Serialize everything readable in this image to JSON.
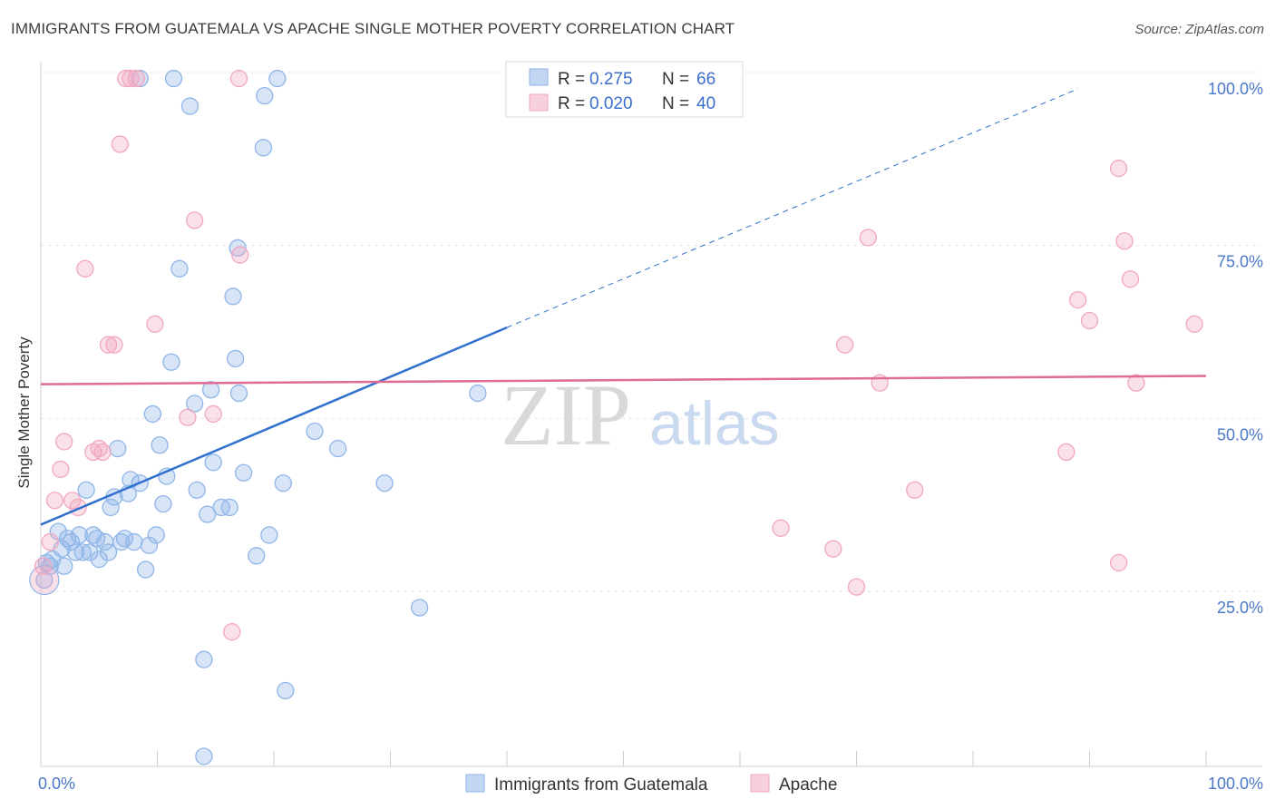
{
  "title": "IMMIGRANTS FROM GUATEMALA VS APACHE SINGLE MOTHER POVERTY CORRELATION CHART",
  "source": "Source: ZipAtlas.com",
  "watermark": {
    "zip": "ZIP",
    "atlas": "atlas"
  },
  "chart_data": {
    "type": "scatter",
    "ylabel": "Single Mother Poverty",
    "xlim": [
      0,
      100
    ],
    "ylim": [
      0,
      103
    ],
    "x_tick_labels": [
      {
        "value": 0,
        "label": "0.0%"
      },
      {
        "value": 100,
        "label": "100.0%"
      }
    ],
    "y_tick_labels": [
      {
        "value": 25,
        "label": "25.0%"
      },
      {
        "value": 50,
        "label": "50.0%"
      },
      {
        "value": 75,
        "label": "75.0%"
      },
      {
        "value": 100,
        "label": "100.0%"
      }
    ],
    "grid": true,
    "legend": {
      "placement": "top-center",
      "entries": [
        {
          "r_label": "R =",
          "r_value": "0.275",
          "n_label": "N =",
          "n_value": "66",
          "color": "#8fb5e8"
        },
        {
          "r_label": "R =",
          "r_value": "0.020",
          "n_label": "N =",
          "n_value": "40",
          "color": "#f2a7bf"
        }
      ]
    },
    "series": [
      {
        "name": "Immigrants from Guatemala",
        "color": "#8fb5e8",
        "line_color": "#2f6fce",
        "trend": {
          "x0": 0,
          "y0": 37.0,
          "x1": 40,
          "y1": 65.5,
          "dash_to_x": 89,
          "dash_to_y": 100
        },
        "points": [
          [
            0.3,
            29.0
          ],
          [
            0.5,
            31.5
          ],
          [
            0.8,
            31.0
          ],
          [
            1.0,
            32.0
          ],
          [
            1.5,
            36.0
          ],
          [
            1.8,
            33.5
          ],
          [
            2.0,
            31.0
          ],
          [
            2.3,
            35.0
          ],
          [
            2.6,
            34.5
          ],
          [
            3.0,
            33.0
          ],
          [
            3.3,
            35.5
          ],
          [
            3.6,
            33.0
          ],
          [
            3.9,
            42.0
          ],
          [
            4.2,
            33.0
          ],
          [
            4.5,
            35.5
          ],
          [
            4.8,
            35.0
          ],
          [
            5.0,
            32.0
          ],
          [
            5.5,
            34.5
          ],
          [
            5.8,
            33.0
          ],
          [
            6.0,
            39.5
          ],
          [
            6.3,
            41.0
          ],
          [
            6.6,
            48.0
          ],
          [
            6.9,
            34.5
          ],
          [
            7.2,
            35.0
          ],
          [
            7.5,
            41.5
          ],
          [
            7.7,
            43.5
          ],
          [
            8.0,
            34.5
          ],
          [
            8.5,
            43.0
          ],
          [
            9.0,
            30.5
          ],
          [
            9.3,
            34.0
          ],
          [
            9.6,
            53.0
          ],
          [
            9.9,
            35.5
          ],
          [
            10.2,
            48.5
          ],
          [
            10.5,
            40.0
          ],
          [
            10.8,
            44.0
          ],
          [
            11.2,
            60.5
          ],
          [
            11.4,
            101.5
          ],
          [
            11.9,
            74.0
          ],
          [
            12.8,
            97.5
          ],
          [
            13.2,
            54.5
          ],
          [
            13.4,
            42.0
          ],
          [
            14.0,
            17.5
          ],
          [
            14.3,
            38.5
          ],
          [
            14.0,
            3.5
          ],
          [
            14.6,
            56.5
          ],
          [
            14.8,
            46.0
          ],
          [
            15.5,
            39.5
          ],
          [
            16.2,
            39.5
          ],
          [
            16.5,
            70.0
          ],
          [
            16.9,
            77.0
          ],
          [
            16.7,
            61.0
          ],
          [
            17.4,
            44.5
          ],
          [
            17.0,
            56.0
          ],
          [
            18.5,
            32.5
          ],
          [
            19.2,
            99.0
          ],
          [
            19.1,
            91.5
          ],
          [
            19.6,
            35.5
          ],
          [
            20.3,
            101.5
          ],
          [
            20.8,
            43.0
          ],
          [
            21.0,
            13.0
          ],
          [
            23.5,
            50.5
          ],
          [
            25.5,
            48.0
          ],
          [
            29.5,
            43.0
          ],
          [
            32.5,
            25.0
          ],
          [
            37.5,
            56.0
          ],
          [
            8.5,
            101.5
          ]
        ]
      },
      {
        "name": "Apache",
        "color": "#f2a7bf",
        "line_color": "#e06b93",
        "trend": {
          "x0": 0,
          "y0": 57.3,
          "x1": 100,
          "y1": 58.5
        },
        "points": [
          [
            0.2,
            31.0
          ],
          [
            0.8,
            34.5
          ],
          [
            1.2,
            40.5
          ],
          [
            1.7,
            45.0
          ],
          [
            2.0,
            49.0
          ],
          [
            2.7,
            40.5
          ],
          [
            3.2,
            39.5
          ],
          [
            3.8,
            74.0
          ],
          [
            4.5,
            47.5
          ],
          [
            5.0,
            48.0
          ],
          [
            5.3,
            47.5
          ],
          [
            5.8,
            63.0
          ],
          [
            6.3,
            63.0
          ],
          [
            6.8,
            92.0
          ],
          [
            7.3,
            101.5
          ],
          [
            7.7,
            101.5
          ],
          [
            8.2,
            101.5
          ],
          [
            9.8,
            66.0
          ],
          [
            12.6,
            52.5
          ],
          [
            13.2,
            81.0
          ],
          [
            14.8,
            53.0
          ],
          [
            16.4,
            21.5
          ],
          [
            17.0,
            101.5
          ],
          [
            17.1,
            76.0
          ],
          [
            63.5,
            36.5
          ],
          [
            68.0,
            33.5
          ],
          [
            69.0,
            63.0
          ],
          [
            70.0,
            28.0
          ],
          [
            71.0,
            78.5
          ],
          [
            72.0,
            57.5
          ],
          [
            75.0,
            42.0
          ],
          [
            88.0,
            47.5
          ],
          [
            89.0,
            69.5
          ],
          [
            90.0,
            66.5
          ],
          [
            92.5,
            31.5
          ],
          [
            92.5,
            88.5
          ],
          [
            93.0,
            78.0
          ],
          [
            93.5,
            72.5
          ],
          [
            94.0,
            57.5
          ],
          [
            99.0,
            66.0
          ]
        ]
      }
    ]
  }
}
